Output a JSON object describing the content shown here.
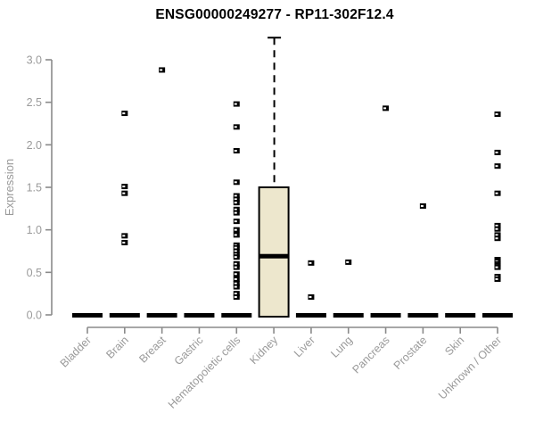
{
  "chart_data": {
    "type": "boxplot",
    "title": "ENSG00000249277 - RP11-302F12.4",
    "xlabel": "",
    "ylabel": "Expression",
    "ylim": [
      0.0,
      3.3
    ],
    "yticks": [
      0.0,
      0.5,
      1.0,
      1.5,
      2.0,
      2.5,
      3.0
    ],
    "ytick_labels": [
      "0.0",
      "0.5",
      "1.0",
      "1.5",
      "2.0",
      "2.5",
      "3.0"
    ],
    "grid": false,
    "legend": "none",
    "categories": [
      "Bladder",
      "Brain",
      "Breast",
      "Gastric",
      "Hematopoietic cells",
      "Kidney",
      "Liver",
      "Lung",
      "Pancreas",
      "Prostate",
      "Skin",
      "Unknown / Other"
    ],
    "boxes": [
      {
        "category": "Bladder",
        "q1": 0.0,
        "median": 0.0,
        "q3": 0.0,
        "whisker_low": 0.0,
        "whisker_high": 0.0,
        "points": []
      },
      {
        "category": "Brain",
        "q1": 0.0,
        "median": 0.0,
        "q3": 0.0,
        "whisker_low": 0.0,
        "whisker_high": 0.0,
        "points": [
          2.37,
          1.51,
          1.43,
          0.93,
          0.85
        ]
      },
      {
        "category": "Breast",
        "q1": 0.0,
        "median": 0.0,
        "q3": 0.0,
        "whisker_low": 0.0,
        "whisker_high": 0.0,
        "points": [
          2.88
        ]
      },
      {
        "category": "Gastric",
        "q1": 0.0,
        "median": 0.0,
        "q3": 0.0,
        "whisker_low": 0.0,
        "whisker_high": 0.0,
        "points": []
      },
      {
        "category": "Hematopoietic cells",
        "q1": 0.0,
        "median": 0.0,
        "q3": 0.0,
        "whisker_low": 0.0,
        "whisker_high": 0.0,
        "points": [
          2.48,
          2.21,
          1.93,
          1.56,
          1.4,
          1.36,
          1.32,
          1.24,
          1.2,
          1.1,
          1.0,
          0.94,
          0.82,
          0.79,
          0.75,
          0.71,
          0.68,
          0.6,
          0.56,
          0.48,
          0.42,
          0.37,
          0.33,
          0.25,
          0.21
        ]
      },
      {
        "category": "Kidney",
        "q1": 0.0,
        "median": 0.69,
        "q3": 1.5,
        "whisker_low": 0.0,
        "whisker_high": 3.26,
        "points": []
      },
      {
        "category": "Liver",
        "q1": 0.0,
        "median": 0.0,
        "q3": 0.0,
        "whisker_low": 0.0,
        "whisker_high": 0.0,
        "points": [
          0.61,
          0.21
        ]
      },
      {
        "category": "Lung",
        "q1": 0.0,
        "median": 0.0,
        "q3": 0.0,
        "whisker_low": 0.0,
        "whisker_high": 0.0,
        "points": [
          0.62
        ]
      },
      {
        "category": "Pancreas",
        "q1": 0.0,
        "median": 0.0,
        "q3": 0.0,
        "whisker_low": 0.0,
        "whisker_high": 0.0,
        "points": [
          2.43
        ]
      },
      {
        "category": "Prostate",
        "q1": 0.0,
        "median": 0.0,
        "q3": 0.0,
        "whisker_low": 0.0,
        "whisker_high": 0.0,
        "points": [
          1.28
        ]
      },
      {
        "category": "Skin",
        "q1": 0.0,
        "median": 0.0,
        "q3": 0.0,
        "whisker_low": 0.0,
        "whisker_high": 0.0,
        "points": []
      },
      {
        "category": "Unknown / Other",
        "q1": 0.0,
        "median": 0.0,
        "q3": 0.0,
        "whisker_low": 0.0,
        "whisker_high": 0.0,
        "points": [
          2.36,
          1.91,
          1.75,
          1.43,
          1.05,
          1.01,
          0.94,
          0.9,
          0.65,
          0.63,
          0.6,
          0.58,
          0.56,
          0.45,
          0.42
        ]
      }
    ],
    "colors": {
      "box_fill": "#EDE7CD",
      "box_stroke": "#000000",
      "median": "#000000",
      "point": "#000000",
      "point_notch": "#FFFFFF",
      "axis": "#8A8A8A",
      "tick_label": "#9A9A9A",
      "title": "#000000",
      "background": "#FFFFFF"
    }
  }
}
